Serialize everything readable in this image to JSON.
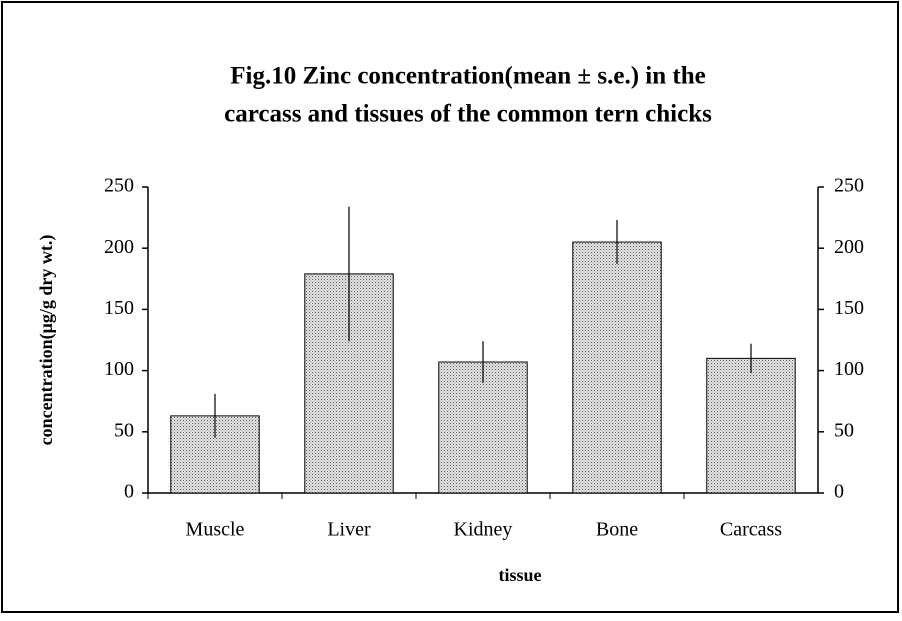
{
  "chart_data": {
    "type": "bar",
    "title": [
      "Fig.10  Zinc concentration(mean ± s.e.) in the",
      "carcass and tissues of the common tern chicks"
    ],
    "x_label": "tissue",
    "y_label": "concentration(μg/g dry wt.)",
    "categories": [
      "Muscle",
      "Liver",
      "Kidney",
      "Bone",
      "Carcass"
    ],
    "values": [
      63,
      179,
      107,
      205,
      110
    ],
    "errors": [
      18,
      55,
      17,
      18,
      12
    ],
    "color": "#c8c8c8",
    "ylim": [
      0,
      250
    ],
    "yticks": [
      0,
      50,
      100,
      150,
      200,
      250
    ],
    "y2lim": [
      0,
      250
    ],
    "y2ticks": [
      0,
      50,
      100,
      150,
      200,
      250
    ]
  }
}
